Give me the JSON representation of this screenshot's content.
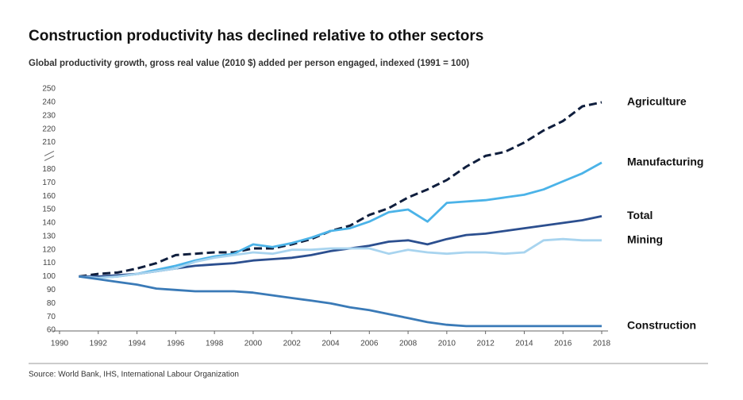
{
  "chart_data": {
    "type": "line",
    "title": "Construction productivity has declined relative to other sectors",
    "subtitle": "Global productivity growth, gross real value (2010 $) added per person engaged, indexed (1991 = 100)",
    "source": "Source: World Bank, IHS, International Labour Organization",
    "x": [
      1991,
      1992,
      1993,
      1994,
      1995,
      1996,
      1997,
      1998,
      1999,
      2000,
      2001,
      2002,
      2003,
      2004,
      2005,
      2006,
      2007,
      2008,
      2009,
      2010,
      2011,
      2012,
      2013,
      2014,
      2015,
      2016,
      2017,
      2018
    ],
    "xlim": [
      1990,
      2018
    ],
    "xticks": [
      1990,
      1992,
      1994,
      1996,
      1998,
      2000,
      2002,
      2004,
      2006,
      2008,
      2010,
      2012,
      2014,
      2016,
      2018
    ],
    "ylim": [
      60,
      250
    ],
    "ybreak": [
      190,
      200
    ],
    "yticks": [
      60,
      70,
      80,
      90,
      100,
      110,
      120,
      130,
      140,
      150,
      160,
      170,
      180,
      210,
      220,
      230,
      240,
      250
    ],
    "grid": false,
    "series": [
      {
        "name": "Agriculture",
        "color": "#0f1e3d",
        "line_style": "dashed",
        "values": [
          100,
          102,
          103,
          106,
          110,
          116,
          117,
          118,
          118,
          121,
          121,
          124,
          128,
          134,
          138,
          146,
          151,
          159,
          165,
          172,
          182,
          190,
          203,
          210,
          219,
          226,
          237,
          240
        ]
      },
      {
        "name": "Manufacturing",
        "color": "#4bb3e8",
        "line_style": "solid",
        "values": [
          100,
          99,
          100,
          102,
          105,
          108,
          112,
          115,
          117,
          124,
          122,
          125,
          129,
          134,
          136,
          141,
          148,
          150,
          141,
          155,
          156,
          157,
          159,
          161,
          165,
          171,
          177,
          185
        ]
      },
      {
        "name": "Total",
        "color": "#2c4f8f",
        "line_style": "solid",
        "values": [
          100,
          100,
          101,
          102,
          104,
          106,
          108,
          109,
          110,
          112,
          113,
          114,
          116,
          119,
          121,
          123,
          126,
          127,
          124,
          128,
          131,
          132,
          134,
          136,
          138,
          140,
          142,
          145
        ]
      },
      {
        "name": "Mining",
        "color": "#a8d4ef",
        "line_style": "solid",
        "values": [
          100,
          99,
          100,
          102,
          104,
          106,
          111,
          114,
          116,
          118,
          117,
          120,
          120,
          121,
          121,
          121,
          117,
          120,
          118,
          117,
          118,
          118,
          117,
          118,
          127,
          128,
          127,
          127
        ]
      },
      {
        "name": "Construction",
        "color": "#3a7ab7",
        "line_style": "solid",
        "values": [
          100,
          98,
          96,
          94,
          91,
          90,
          89,
          89,
          89,
          88,
          86,
          84,
          82,
          80,
          77,
          75,
          72,
          69,
          66,
          64,
          63,
          63,
          63,
          63,
          63,
          63,
          63,
          63
        ]
      }
    ]
  }
}
